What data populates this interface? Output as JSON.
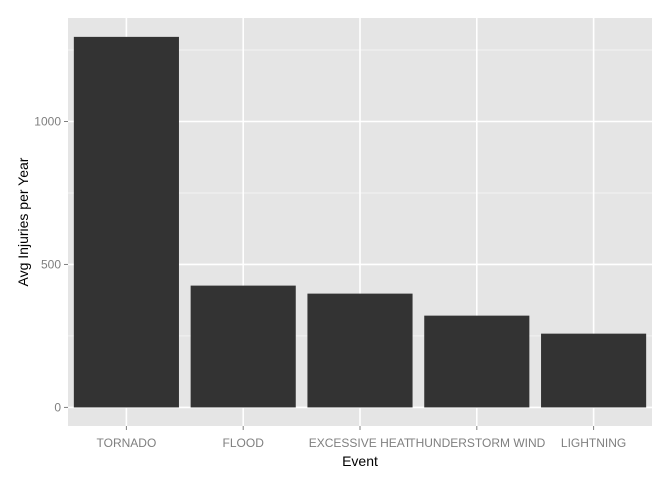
{
  "chart_data": {
    "type": "bar",
    "title": "",
    "xlabel": "Event",
    "ylabel": "Avg Injuries per Year",
    "categories": [
      "TORNADO",
      "FLOOD",
      "EXCESSIVE HEAT",
      "THUNDERSTORM WIND",
      "LIGHTNING"
    ],
    "values": [
      1296,
      426,
      398,
      321,
      258
    ],
    "ylim": [
      -65,
      1362
    ],
    "yticks": [
      0,
      500,
      1000
    ],
    "ytick_labels": [
      "0",
      "500",
      "1000"
    ],
    "grid": true,
    "legend": "none",
    "colors": {
      "panel_background": "#e5e5e5",
      "grid_major": "#ffffff",
      "grid_minor": "#f2f2f2",
      "bar_fill": "#333333",
      "tick_text": "#7f7f7f",
      "tick_mark": "#7f7f7f",
      "axis_title": "#000000"
    }
  }
}
